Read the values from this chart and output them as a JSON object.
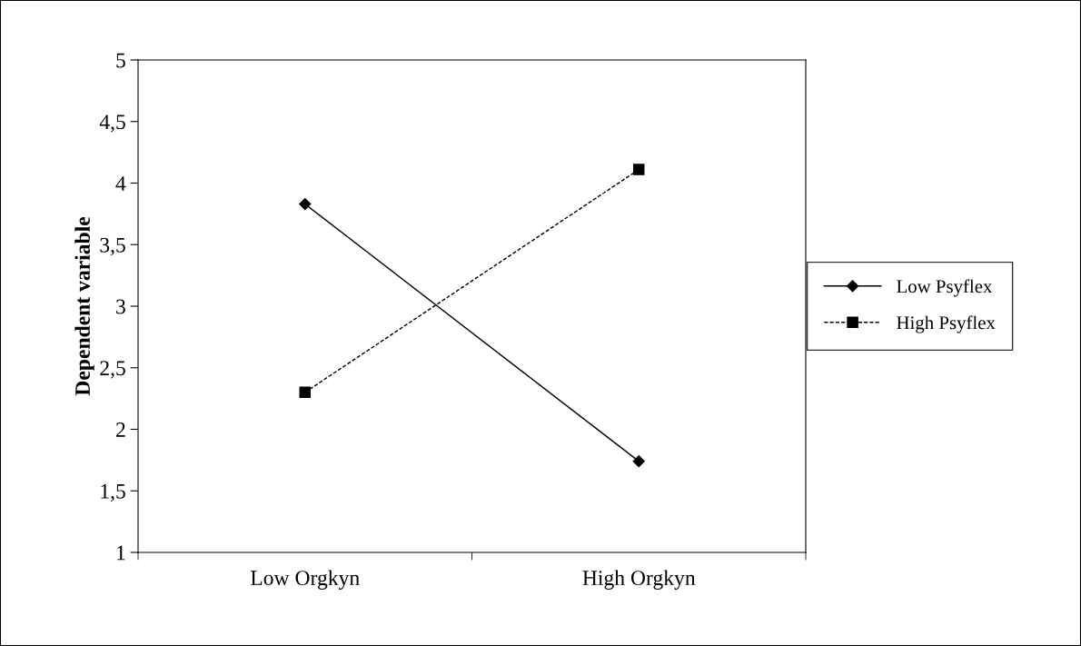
{
  "chart_data": {
    "type": "line",
    "ylabel": "Dependent variable",
    "categories": [
      "Low Orgkyn",
      "High Orgkyn"
    ],
    "series": [
      {
        "name": "Low Psyflex",
        "color": "#000000",
        "values": [
          3.83,
          1.74
        ],
        "marker": "diamond",
        "line_style": "solid"
      },
      {
        "name": "High Psyflex",
        "color": "#000000",
        "values": [
          2.3,
          4.11
        ],
        "marker": "square",
        "line_style": "dashed"
      }
    ],
    "ylim": [
      1,
      5
    ],
    "yticks": [
      1,
      {
        "value": 1.5,
        "label": "1,5"
      },
      2,
      {
        "value": 2.5,
        "label": "2,5"
      },
      3,
      {
        "value": 3.5,
        "label": "3,5"
      },
      4,
      {
        "value": 4.5,
        "label": "4,5"
      },
      5
    ],
    "grid": false,
    "legend": "right"
  }
}
